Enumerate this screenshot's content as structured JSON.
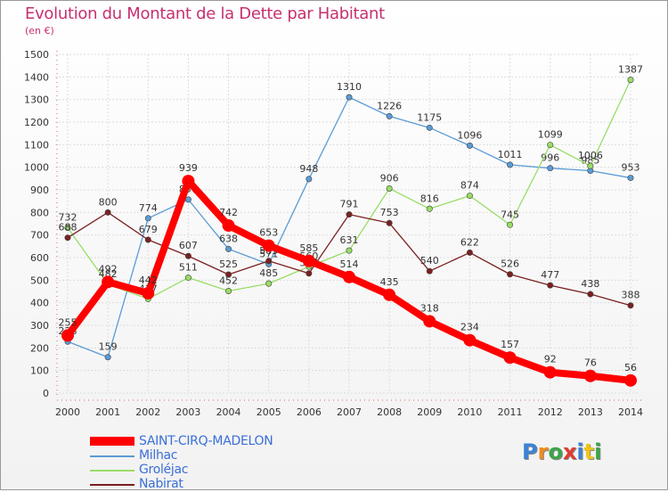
{
  "title": "Evolution du Montant de la Dette par Habitant",
  "subtitle": "(en €)",
  "logo": {
    "text": "Proxiti",
    "letters": [
      {
        "ch": "P",
        "color": "#3b82d6"
      },
      {
        "ch": "r",
        "color": "#f08a1c"
      },
      {
        "ch": "o",
        "color": "#3aa547"
      },
      {
        "ch": "x",
        "color": "#e23b2e"
      },
      {
        "ch": "i",
        "color": "#3b82d6"
      },
      {
        "ch": "t",
        "color": "#f0c419"
      },
      {
        "ch": "i",
        "color": "#3aa547"
      }
    ]
  },
  "chart_data": {
    "type": "line",
    "title": "Evolution du Montant de la Dette par Habitant",
    "ylabel": "(en €)",
    "xlabel": "",
    "x": [
      "2000",
      "2001",
      "2002",
      "2003",
      "2004",
      "2005",
      "2006",
      "2007",
      "2008",
      "2009",
      "2010",
      "2011",
      "2012",
      "2013",
      "2014"
    ],
    "ylim": [
      0,
      1500
    ],
    "yticks": [
      0,
      100,
      200,
      300,
      400,
      500,
      600,
      700,
      800,
      900,
      1000,
      1100,
      1200,
      1300,
      1400,
      1500
    ],
    "grid": true,
    "legend_position": "bottom-left",
    "series": [
      {
        "name": "SAINT-CIRQ-MADELON",
        "color": "#ff0000",
        "bold": true,
        "values": [
          255,
          492,
          442,
          939,
          742,
          653,
          585,
          514,
          435,
          318,
          234,
          157,
          92,
          76,
          56
        ]
      },
      {
        "name": "Milhac",
        "color": "#5b9bd5",
        "bold": false,
        "values": [
          228,
          159,
          774,
          857,
          638,
          571,
          948,
          1310,
          1226,
          1175,
          1096,
          1011,
          996,
          985,
          953
        ]
      },
      {
        "name": "Groléjac",
        "color": "#99dd66",
        "bold": false,
        "values": [
          732,
          482,
          417,
          511,
          452,
          485,
          560,
          631,
          906,
          816,
          874,
          745,
          1099,
          1006,
          1387
        ]
      },
      {
        "name": "Nabirat",
        "color": "#7a2020",
        "bold": false,
        "values": [
          688,
          800,
          679,
          607,
          525,
          585,
          530,
          791,
          753,
          540,
          622,
          526,
          477,
          438,
          388
        ]
      }
    ]
  }
}
